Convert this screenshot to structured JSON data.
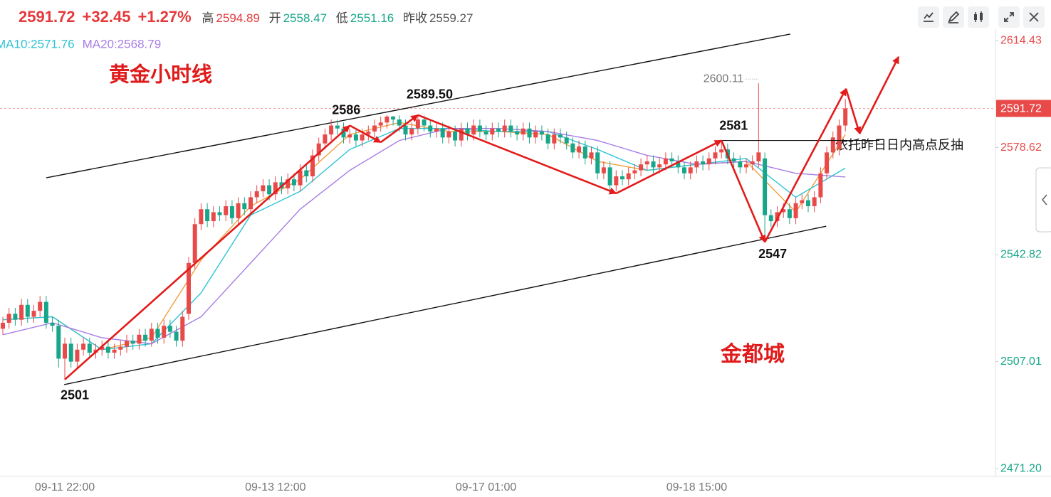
{
  "header": {
    "last": "2591.72",
    "change": "+32.45",
    "change_pct": "+1.27%",
    "high_label": "高",
    "high": "2594.89",
    "open_label": "开",
    "open": "2558.47",
    "low_label": "低",
    "low": "2551.16",
    "prev_close_label": "昨收",
    "prev_close": "2559.27"
  },
  "chart_data": {
    "type": "candlestick",
    "title": "黄金小时线",
    "watermark": "金都城",
    "note": "依托昨日日内高点反抽",
    "categories": [
      null,
      null,
      null,
      null,
      null,
      null,
      null,
      null,
      null,
      null,
      "09-11 22:00",
      null,
      null,
      null,
      null,
      null,
      null,
      null,
      null,
      null,
      null,
      null,
      null,
      null,
      null,
      null,
      null,
      null,
      null,
      null,
      null,
      null,
      null,
      null,
      null,
      null,
      null,
      null,
      null,
      null,
      null,
      null,
      null,
      null,
      "09-13 12:00",
      null,
      null,
      null,
      null,
      null,
      null,
      null,
      null,
      null,
      null,
      null,
      null,
      null,
      null,
      null,
      null,
      null,
      null,
      null,
      null,
      null,
      null,
      null,
      null,
      null,
      null,
      null,
      null,
      null,
      null,
      null,
      null,
      null,
      "09-17 01:00",
      null,
      null,
      null,
      null,
      null,
      null,
      null,
      null,
      null,
      null,
      null,
      null,
      null,
      null,
      null,
      null,
      null,
      null,
      null,
      null,
      null,
      null,
      null,
      null,
      null,
      null,
      null,
      null,
      null,
      null,
      null,
      null,
      null,
      "09-18 15:00",
      null,
      null,
      null,
      null,
      null,
      null,
      null,
      null,
      null,
      null,
      null,
      null,
      null,
      null,
      null,
      null,
      null,
      null,
      null,
      null,
      null,
      null,
      null,
      null
    ],
    "series": [
      {
        "up_color": "#e84a4a",
        "down_color": "#17a689",
        "open": [
          2518,
          2520,
          2523,
          2521,
          2526,
          2522,
          2524,
          2527,
          2520,
          2519,
          2508,
          2513,
          2507,
          2511,
          2513,
          2510,
          2511,
          2512,
          2510,
          2511,
          2512,
          2514,
          2513,
          2516,
          2514,
          2518,
          2515,
          2519,
          2517,
          2514,
          2523,
          2540,
          2553,
          2558,
          2554,
          2557,
          2556,
          2559,
          2555,
          2560,
          2558,
          2562,
          2564,
          2566,
          2563,
          2567,
          2565,
          2568,
          2566,
          2571,
          2569,
          2576,
          2580,
          2583,
          2586,
          2585,
          2582,
          2583,
          2581,
          2583,
          2584,
          2586,
          2587,
          2589,
          2588,
          2586,
          2583,
          2585,
          2588,
          2586,
          2584,
          2585,
          2582,
          2584,
          2581,
          2585,
          2583,
          2586,
          2584,
          2583,
          2585,
          2584,
          2586,
          2584,
          2583,
          2585,
          2582,
          2584,
          2583,
          2580,
          2583,
          2582,
          2580,
          2577,
          2579,
          2575,
          2577,
          2570,
          2572,
          2566,
          2569,
          2568,
          2570,
          2571,
          2573,
          2574,
          2572,
          2573,
          2575,
          2574,
          2572,
          2570,
          2572,
          2574,
          2573,
          2575,
          2577,
          2578,
          2575,
          2574,
          2572,
          2573,
          2574,
          2575,
          2556,
          2554,
          2557,
          2558,
          2555,
          2560,
          2561,
          2559,
          2562,
          2570,
          2577,
          2578,
          2586
        ],
        "high": [
          2522,
          2525,
          2525,
          2528,
          2528,
          2526,
          2529,
          2529,
          2522,
          2521,
          2515,
          2515,
          2513,
          2515,
          2515,
          2513,
          2514,
          2514,
          2513,
          2514,
          2516,
          2516,
          2518,
          2518,
          2520,
          2520,
          2521,
          2521,
          2519,
          2524,
          2542,
          2555,
          2560,
          2560,
          2559,
          2559,
          2561,
          2561,
          2562,
          2562,
          2564,
          2566,
          2568,
          2568,
          2569,
          2569,
          2570,
          2570,
          2573,
          2573,
          2578,
          2582,
          2585,
          2588,
          2588,
          2587,
          2585,
          2585,
          2585,
          2586,
          2588,
          2589,
          2589.5,
          2589.2,
          2589.4,
          2588,
          2587,
          2589.3,
          2589.3,
          2588,
          2587,
          2587,
          2586,
          2586,
          2587,
          2587,
          2588,
          2588,
          2586,
          2587,
          2587,
          2588,
          2588,
          2586,
          2587,
          2587,
          2586,
          2586,
          2585,
          2585,
          2585,
          2584,
          2582,
          2581,
          2581,
          2579,
          2579,
          2574,
          2574,
          2571,
          2571,
          2572,
          2573,
          2575,
          2576,
          2576,
          2575,
          2577,
          2577,
          2576,
          2574,
          2574,
          2576,
          2576,
          2577,
          2579,
          2581,
          2580,
          2577,
          2576,
          2575,
          2576,
          2600.11,
          2577,
          2558,
          2559,
          2560,
          2560,
          2562,
          2563,
          2563,
          2564,
          2572,
          2579,
          2584,
          2588,
          2594.89
        ],
        "low": [
          2516,
          2518,
          2519,
          2519,
          2520,
          2520,
          2522,
          2518,
          2517,
          2505,
          2501,
          2505,
          2505,
          2509,
          2508,
          2508,
          2509,
          2508,
          2508,
          2509,
          2510,
          2511,
          2511,
          2512,
          2512,
          2513,
          2513,
          2515,
          2512,
          2512,
          2521,
          2538,
          2551,
          2552,
          2552,
          2554,
          2554,
          2553,
          2553,
          2556,
          2556,
          2560,
          2562,
          2561,
          2561,
          2563,
          2563,
          2564,
          2564,
          2567,
          2567,
          2574,
          2578,
          2581,
          2583,
          2580,
          2580,
          2579,
          2579,
          2581,
          2582,
          2584,
          2585,
          2586,
          2584,
          2581,
          2581,
          2583,
          2584,
          2582,
          2582,
          2580,
          2580,
          2579,
          2579,
          2581,
          2581,
          2582,
          2581,
          2581,
          2582,
          2582,
          2582,
          2581,
          2581,
          2580,
          2580,
          2581,
          2578,
          2578,
          2580,
          2578,
          2575,
          2575,
          2573,
          2573,
          2568,
          2568,
          2563,
          2564,
          2566,
          2566,
          2568,
          2569,
          2571,
          2570,
          2570,
          2571,
          2572,
          2570,
          2568,
          2568,
          2570,
          2571,
          2571,
          2573,
          2575,
          2573,
          2572,
          2570,
          2570,
          2571,
          2572,
          2547,
          2552,
          2552,
          2555,
          2553,
          2553,
          2558,
          2557,
          2557,
          2560,
          2568,
          2575,
          2576,
          2584
        ],
        "close": [
          2520,
          2523,
          2521,
          2526,
          2522,
          2524,
          2527,
          2520,
          2519,
          2508,
          2513,
          2507,
          2511,
          2513,
          2510,
          2511,
          2512,
          2510,
          2511,
          2512,
          2514,
          2513,
          2516,
          2514,
          2518,
          2515,
          2519,
          2517,
          2514,
          2522,
          2540,
          2553,
          2558,
          2554,
          2557,
          2556,
          2559,
          2555,
          2560,
          2558,
          2562,
          2564,
          2566,
          2563,
          2567,
          2565,
          2568,
          2566,
          2571,
          2569,
          2576,
          2580,
          2583,
          2586,
          2585,
          2582,
          2583,
          2581,
          2583,
          2584,
          2586,
          2587,
          2589,
          2588,
          2586,
          2583,
          2585,
          2588,
          2586,
          2584,
          2585,
          2582,
          2584,
          2581,
          2585,
          2583,
          2586,
          2584,
          2583,
          2585,
          2584,
          2586,
          2584,
          2583,
          2585,
          2582,
          2584,
          2583,
          2580,
          2583,
          2582,
          2580,
          2577,
          2579,
          2575,
          2577,
          2570,
          2572,
          2566,
          2569,
          2568,
          2570,
          2571,
          2573,
          2574,
          2572,
          2573,
          2575,
          2574,
          2572,
          2570,
          2572,
          2574,
          2573,
          2575,
          2577,
          2578,
          2575,
          2574,
          2572,
          2573,
          2574,
          2577,
          2556,
          2554,
          2557,
          2558,
          2555,
          2560,
          2561,
          2559,
          2562,
          2570,
          2577,
          2582,
          2586,
          2591.72
        ]
      }
    ],
    "ma_lines": [
      {
        "color": "#f0a040",
        "x": [
          0,
          8,
          16,
          24,
          32,
          40,
          48,
          56,
          64,
          72,
          80,
          88,
          96,
          104,
          112,
          120,
          128,
          136
        ],
        "values": [
          2521,
          2522,
          2511,
          2515,
          2541,
          2559,
          2568,
          2583,
          2587,
          2584,
          2584,
          2583,
          2574,
          2571,
          2573,
          2574,
          2557,
          2583
        ]
      },
      {
        "name": "MA10:2571.76",
        "color": "#2ec4d6",
        "x": [
          0,
          8,
          16,
          24,
          32,
          40,
          48,
          56,
          64,
          72,
          80,
          88,
          96,
          104,
          112,
          120,
          128,
          136
        ],
        "values": [
          2521,
          2522,
          2511,
          2513,
          2530,
          2556,
          2564,
          2578,
          2585,
          2585,
          2584,
          2584,
          2578,
          2571,
          2573,
          2575,
          2562,
          2571.76
        ]
      },
      {
        "name": "MA20:2568.79",
        "color": "#a77de6",
        "x": [
          0,
          8,
          16,
          24,
          32,
          40,
          48,
          56,
          64,
          72,
          80,
          88,
          96,
          104,
          112,
          120,
          128,
          136
        ],
        "values": [
          2516,
          2520,
          2515,
          2513,
          2522,
          2540,
          2558,
          2571,
          2581,
          2585,
          2585,
          2584,
          2581,
          2576,
          2573,
          2574,
          2570,
          2568.79
        ]
      }
    ],
    "xlim": [
      -0.46,
      160.23
    ],
    "ylim": [
      2468.6,
      2628.0
    ],
    "yticks": [
      2614.43,
      2578.62,
      2542.82,
      2507.01,
      {
        "value": 2471.2,
        "label": "2471.20"
      }
    ],
    "ytick_colors": [
      "#e84a4a",
      "#e84a4a",
      "#17a689",
      "#17a689",
      "#17a689"
    ],
    "last_price": 2591.72,
    "last_price_color": "#e84a4a",
    "max_marker": {
      "x": 122,
      "value": 2600.11
    },
    "channel": [
      {
        "x": [
          7,
          127.1
        ],
        "y": [
          2568.5,
          2616.6
        ]
      },
      {
        "x": [
          9.9,
          132.9
        ],
        "y": [
          2499.3,
          2552.3
        ]
      }
    ],
    "support_line": {
      "x": [
        115.6,
        141.5
      ],
      "value": 2581
    },
    "trend_arrows": {
      "color": "#e31b1b",
      "points": [
        {
          "x": 10,
          "y": 2501
        },
        {
          "x": 56,
          "y": 2586
        },
        {
          "x": 61,
          "y": 2580.4
        },
        {
          "x": 67,
          "y": 2589.5
        },
        {
          "x": 99,
          "y": 2563.3
        },
        {
          "x": 116,
          "y": 2581
        },
        {
          "x": 123,
          "y": 2547
        },
        {
          "x": 136.1,
          "y": 2598.3
        },
        {
          "x": 138.3,
          "y": 2583.3
        },
        {
          "x": 144.6,
          "y": 2609
        }
      ]
    },
    "pivot_labels": [
      {
        "x": 10,
        "value": 2501
      },
      {
        "x": 56,
        "value": 2586
      },
      {
        "x": 67,
        "value": {
          "value": 2589.5,
          "label": "2589.50"
        }
      },
      {
        "x": 116,
        "value": 2581
      },
      {
        "x": 123,
        "value": 2547
      }
    ]
  }
}
